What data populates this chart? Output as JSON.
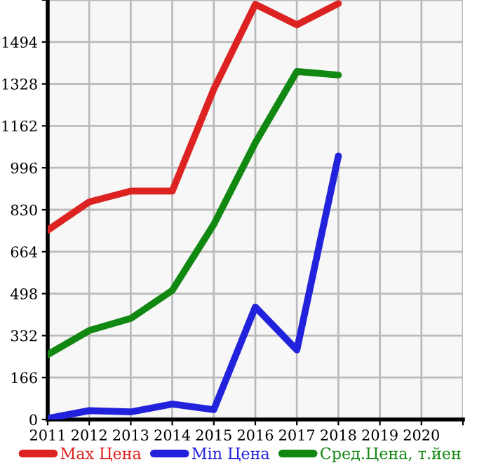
{
  "chart_data": {
    "type": "line",
    "x": [
      2011,
      2012,
      2013,
      2014,
      2015,
      2016,
      2017,
      2018
    ],
    "series": [
      {
        "name": "Max Цена",
        "color": "#dd2222",
        "values": [
          749,
          861,
          904,
          904,
          1307,
          1643,
          1562,
          1646
        ]
      },
      {
        "name": "Min Цена",
        "color": "#2222dd",
        "values": [
          4,
          35,
          30,
          61,
          39,
          445,
          275,
          1043
        ]
      },
      {
        "name": "Сред.Цена, т.йен",
        "color": "#118811",
        "values": [
          257,
          352,
          400,
          511,
          772,
          1095,
          1377,
          1363
        ]
      }
    ],
    "xlim": [
      2011,
      2021
    ],
    "xticks": [
      2011,
      2012,
      2013,
      2014,
      2015,
      2016,
      2017,
      2018,
      2019,
      2020,
      {
        "value": 2021,
        "label": null
      }
    ],
    "ylim": [
      0,
      1660
    ],
    "yticks": [
      0,
      166,
      332,
      498,
      664,
      830,
      996,
      1162,
      1328,
      1494,
      {
        "value": 1660,
        "label": null
      }
    ],
    "grid": true,
    "legend": "bottom",
    "marker": "none",
    "line_style": "solid"
  }
}
